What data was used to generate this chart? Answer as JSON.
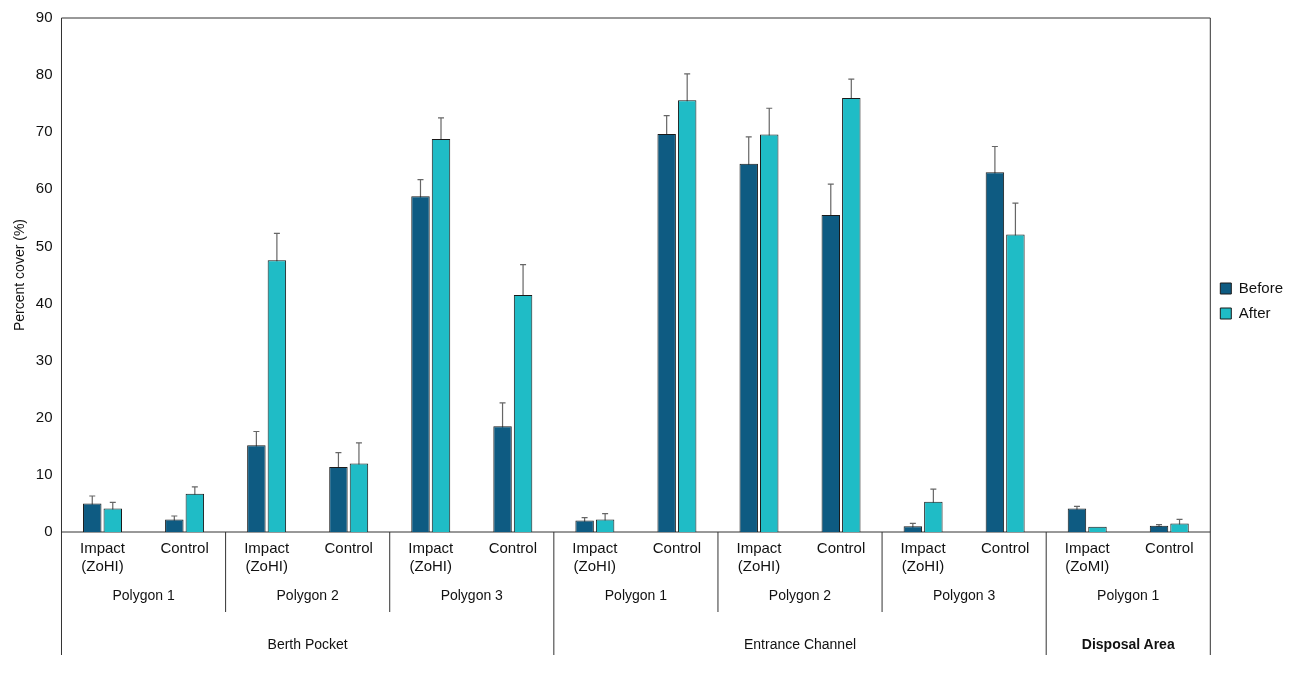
{
  "chart_data": {
    "type": "bar",
    "ylabel": "Percent cover (%)",
    "categories": [
      "Impact (ZoHI)",
      "Control",
      "Impact (ZoHI)",
      "Control",
      "Impact (ZoHI)",
      "Control",
      "Impact (ZoHI)",
      "Control",
      "Impact (ZoHI)",
      "Control",
      "Impact (ZoHI)",
      "Control",
      "Impact (ZoMI)",
      "Control"
    ],
    "series": [
      {
        "name": "Before",
        "color": "#0e5b82",
        "values": [
          5.0,
          2.2,
          15.2,
          11.4,
          58.8,
          18.5,
          2.0,
          69.7,
          64.5,
          55.5,
          1.0,
          63.0,
          4.1,
          1.1
        ],
        "errors": [
          1.3,
          0.6,
          2.4,
          2.5,
          2.9,
          4.1,
          0.5,
          3.2,
          4.7,
          5.4,
          0.5,
          4.5,
          0.4,
          0.2
        ]
      },
      {
        "name": "After",
        "color": "#1fbcc6",
        "values": [
          4.1,
          6.7,
          47.6,
          12.0,
          68.8,
          41.5,
          2.2,
          75.6,
          69.6,
          76.0,
          5.3,
          52.1,
          0.9,
          1.5
        ],
        "errors": [
          1.1,
          1.2,
          4.7,
          3.6,
          3.7,
          5.3,
          1.0,
          4.6,
          4.6,
          3.3,
          2.2,
          5.5,
          null,
          0.7
        ]
      }
    ],
    "ylim": [
      0,
      90
    ],
    "yticks": [
      0,
      10,
      20,
      30,
      40,
      50,
      60,
      70,
      80,
      90
    ],
    "grid": false,
    "legend": "right",
    "annotations": [
      "Polygon 1",
      "Polygon 2",
      "Polygon 3",
      "Polygon 1",
      "Polygon 2",
      "Polygon 3",
      "Polygon 1",
      "Berth Pocket",
      "Entrance Channel",
      "Disposal Area"
    ]
  }
}
